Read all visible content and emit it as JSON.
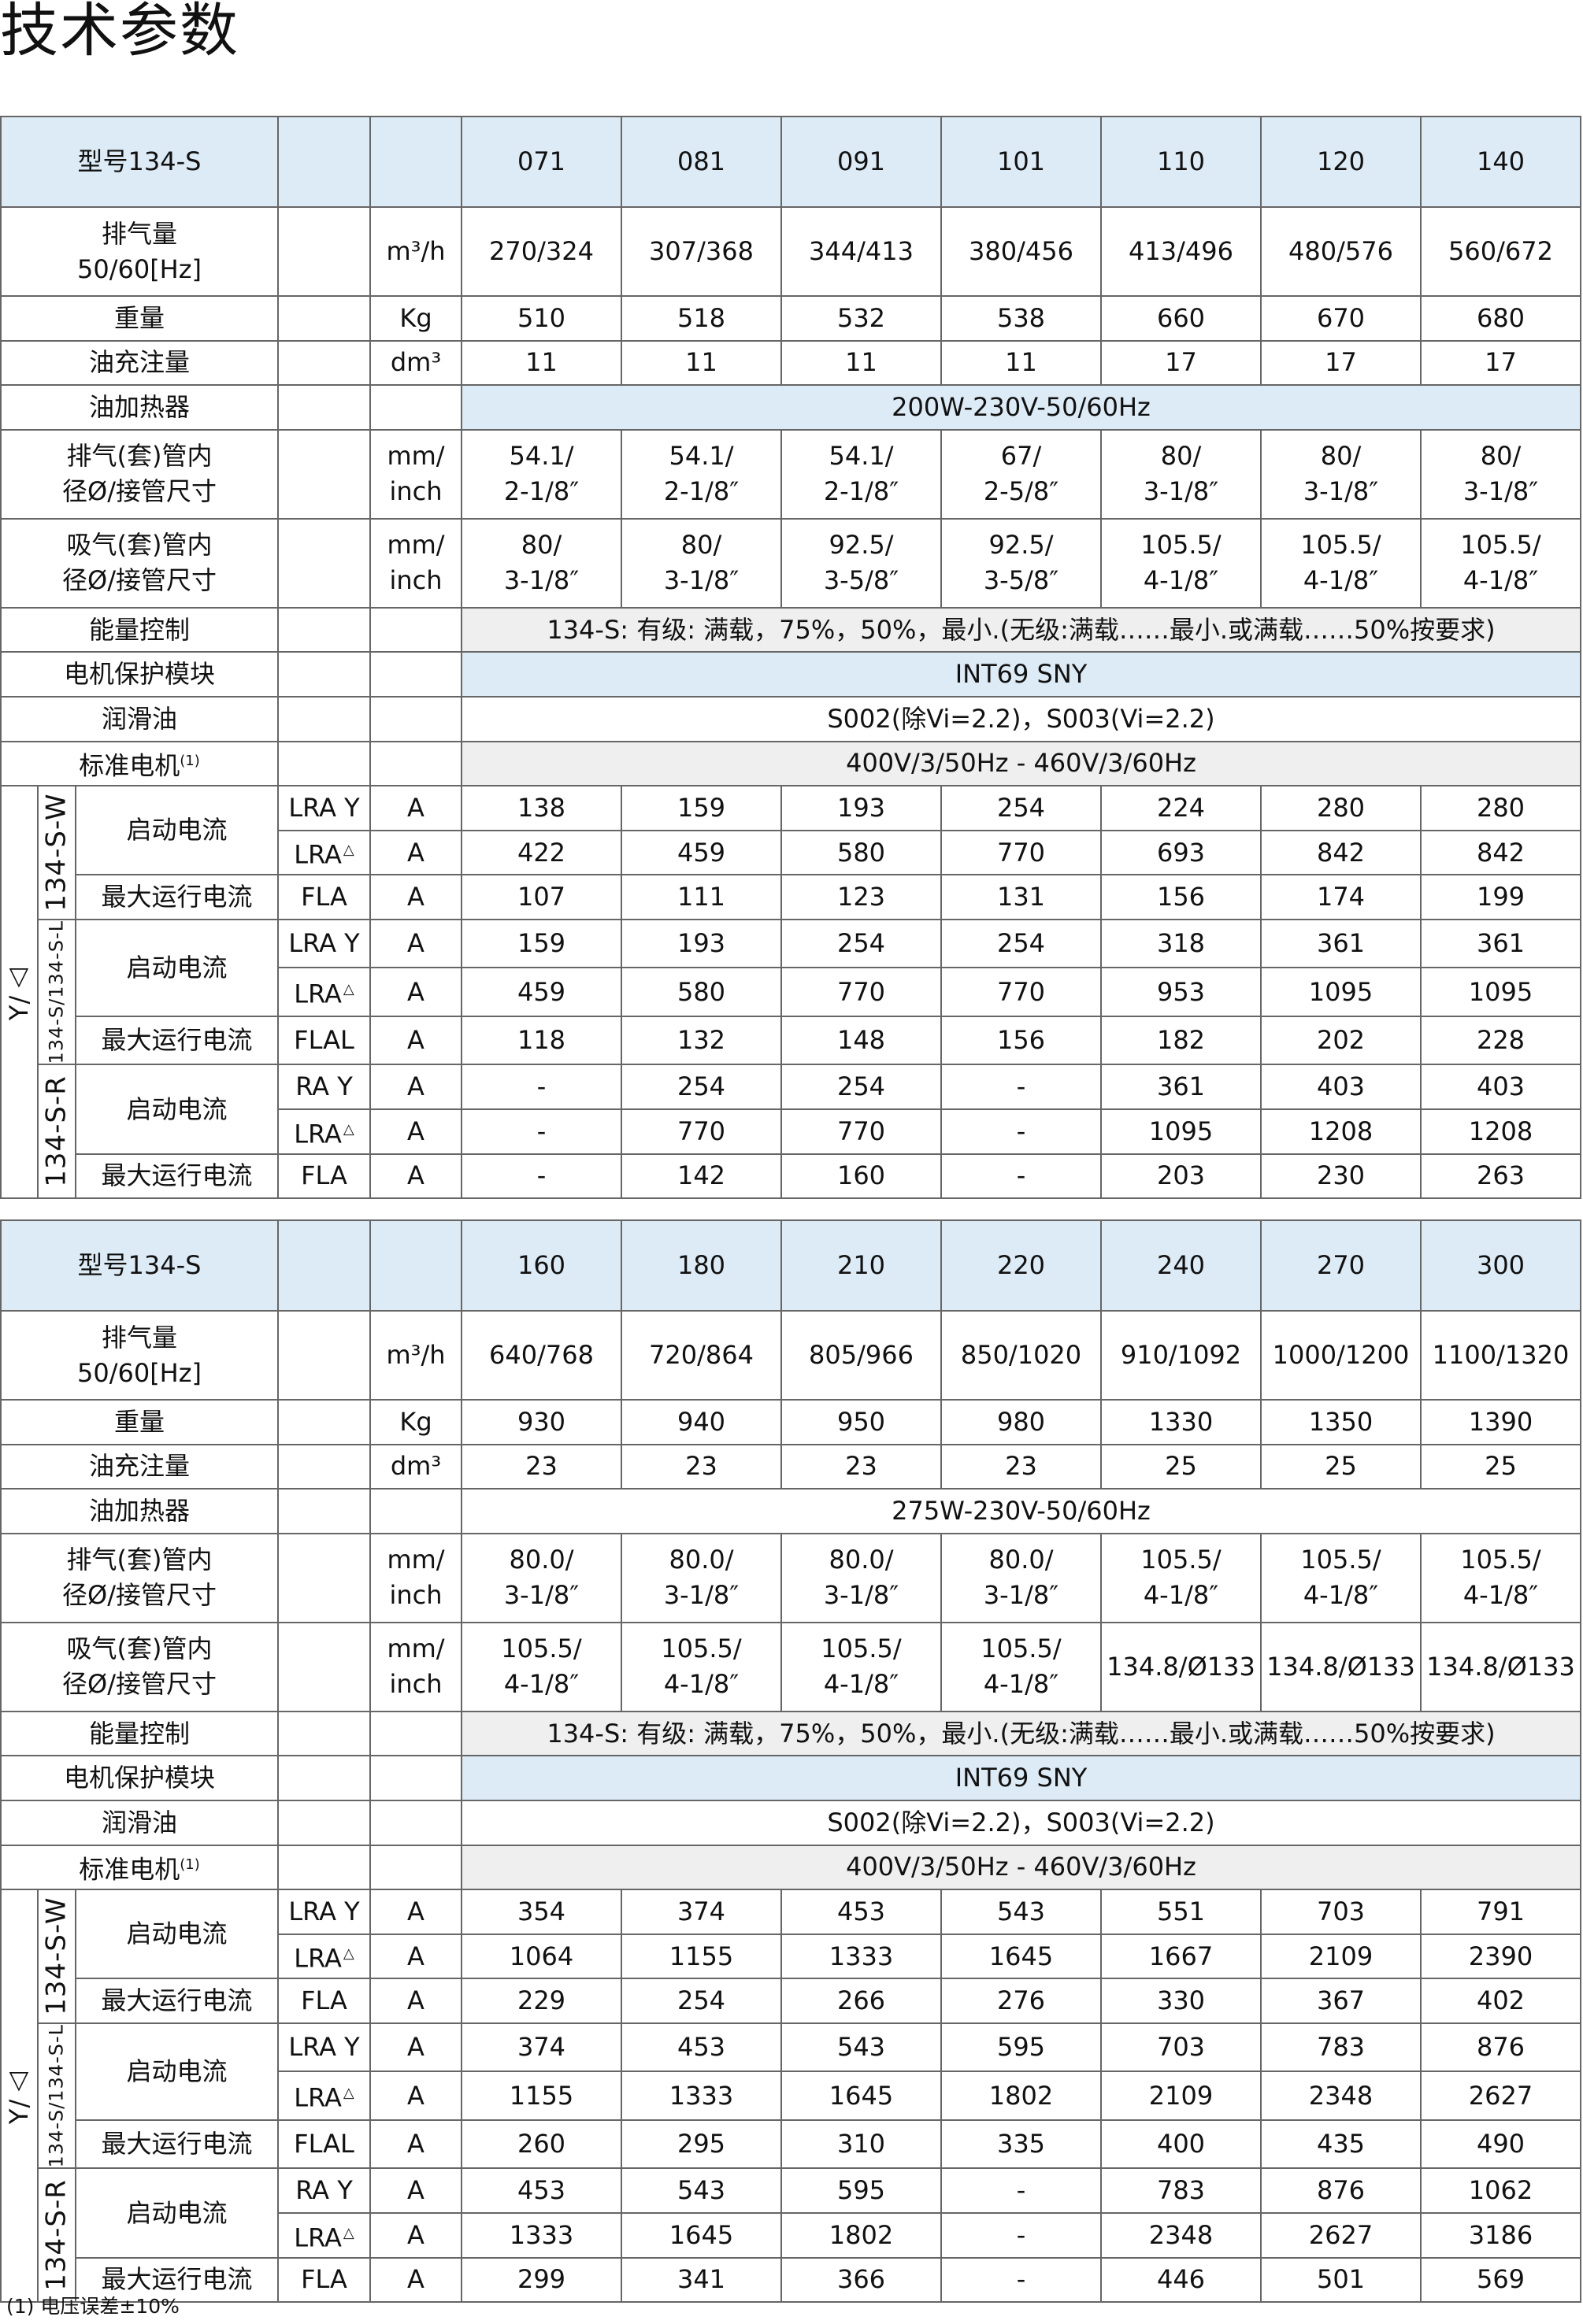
{
  "title": "技术参数",
  "footnote": "(1) 电压误差±10%",
  "tables": [
    {
      "model_label": "型号134-S",
      "models": [
        "071",
        "081",
        "091",
        "101",
        "110",
        "120",
        "140"
      ],
      "rows": [
        {
          "label": "排气量\n50/60[Hz]",
          "unit": "m³/h",
          "size": "dbl",
          "values": [
            "270/324",
            "307/368",
            "344/413",
            "380/456",
            "413/496",
            "480/576",
            "560/672"
          ]
        },
        {
          "label": "重量",
          "unit": "Kg",
          "size": "sgl",
          "values": [
            "510",
            "518",
            "532",
            "538",
            "660",
            "670",
            "680"
          ]
        },
        {
          "label": "油充注量",
          "unit": "dm³",
          "size": "sgl",
          "values": [
            "11",
            "11",
            "11",
            "11",
            "17",
            "17",
            "17"
          ]
        },
        {
          "label": "油加热器",
          "unit": "",
          "size": "sgl",
          "merged": "200W-230V-50/60Hz",
          "fill": "blue"
        },
        {
          "label": "排气(套)管内\n径Ø/接管尺寸",
          "unit": "mm/\ninch",
          "size": "dbl",
          "values": [
            "54.1/\n2-1/8″",
            "54.1/\n2-1/8″",
            "54.1/\n2-1/8″",
            "67/\n2-5/8″",
            "80/\n3-1/8″",
            "80/\n3-1/8″",
            "80/\n3-1/8″"
          ]
        },
        {
          "label": "吸气(套)管内\n径Ø/接管尺寸",
          "unit": "mm/\ninch",
          "size": "dbl",
          "values": [
            "80/\n3-1/8″",
            "80/\n3-1/8″",
            "92.5/\n3-5/8″",
            "92.5/\n3-5/8″",
            "105.5/\n4-1/8″",
            "105.5/\n4-1/8″",
            "105.5/\n4-1/8″"
          ]
        },
        {
          "label": "能量控制",
          "unit": "",
          "size": "sgl",
          "merged": "134-S: 有级: 满载，75%，50%，最小.(无级:满载……最小.或满载……50%按要求)",
          "fill": "gray"
        },
        {
          "label": "电机保护模块",
          "unit": "",
          "size": "sgl",
          "merged": "INT69 SNY",
          "fill": "blue"
        },
        {
          "label": "润滑油",
          "unit": "",
          "size": "sgl",
          "merged": "S002(除Vi=2.2)，S003(Vi=2.2)",
          "fill": "white"
        },
        {
          "label": "标准电机",
          "sup": "(1)",
          "unit": "",
          "size": "sgl",
          "merged": "400V/3/50Hz - 460V/3/60Hz",
          "fill": "gray"
        }
      ],
      "currents": {
        "group_label": "Y/△",
        "subgroups": [
          {
            "name": "134-S-W",
            "small": false,
            "start_label": "启动电流",
            "max_label": "最大运行电流",
            "rows": [
              {
                "code": "LRA Y",
                "mark": "",
                "unit": "A",
                "values": [
                  "138",
                  "159",
                  "193",
                  "254",
                  "224",
                  "280",
                  "280"
                ]
              },
              {
                "code": "LRA",
                "mark": "△",
                "unit": "A",
                "values": [
                  "422",
                  "459",
                  "580",
                  "770",
                  "693",
                  "842",
                  "842"
                ]
              },
              {
                "code": "FLA",
                "mark": "",
                "unit": "A",
                "values": [
                  "107",
                  "111",
                  "123",
                  "131",
                  "156",
                  "174",
                  "199"
                ]
              }
            ]
          },
          {
            "name": "134-S/134-S-L",
            "small": true,
            "start_label": "启动电流",
            "max_label": "最大运行电流",
            "rows": [
              {
                "code": "LRA Y",
                "mark": "",
                "unit": "A",
                "values": [
                  "159",
                  "193",
                  "254",
                  "254",
                  "318",
                  "361",
                  "361"
                ]
              },
              {
                "code": "LRA",
                "mark": "△",
                "unit": "A",
                "values": [
                  "459",
                  "580",
                  "770",
                  "770",
                  "953",
                  "1095",
                  "1095"
                ]
              },
              {
                "code": "FLAL",
                "mark": "",
                "unit": "A",
                "values": [
                  "118",
                  "132",
                  "148",
                  "156",
                  "182",
                  "202",
                  "228"
                ]
              }
            ]
          },
          {
            "name": "134-S-R",
            "small": false,
            "start_label": "启动电流",
            "max_label": "最大运行电流",
            "rows": [
              {
                "code": "RA Y",
                "mark": "",
                "unit": "A",
                "values": [
                  "-",
                  "254",
                  "254",
                  "-",
                  "361",
                  "403",
                  "403"
                ]
              },
              {
                "code": "LRA",
                "mark": "△",
                "unit": "A",
                "values": [
                  "-",
                  "770",
                  "770",
                  "-",
                  "1095",
                  "1208",
                  "1208"
                ]
              },
              {
                "code": "FLA",
                "mark": "",
                "unit": "A",
                "values": [
                  "-",
                  "142",
                  "160",
                  "-",
                  "203",
                  "230",
                  "263"
                ]
              }
            ]
          }
        ]
      }
    },
    {
      "model_label": "型号134-S",
      "models": [
        "160",
        "180",
        "210",
        "220",
        "240",
        "270",
        "300"
      ],
      "rows": [
        {
          "label": "排气量\n50/60[Hz]",
          "unit": "m³/h",
          "size": "dbl",
          "values": [
            "640/768",
            "720/864",
            "805/966",
            "850/1020",
            "910/1092",
            "1000/1200",
            "1100/1320"
          ]
        },
        {
          "label": "重量",
          "unit": "Kg",
          "size": "sgl",
          "values": [
            "930",
            "940",
            "950",
            "980",
            "1330",
            "1350",
            "1390"
          ]
        },
        {
          "label": "油充注量",
          "unit": "dm³",
          "size": "sgl",
          "values": [
            "23",
            "23",
            "23",
            "23",
            "25",
            "25",
            "25"
          ]
        },
        {
          "label": "油加热器",
          "unit": "",
          "size": "sgl",
          "merged": "275W-230V-50/60Hz",
          "fill": "white"
        },
        {
          "label": "排气(套)管内\n径Ø/接管尺寸",
          "unit": "mm/\ninch",
          "size": "dbl",
          "values": [
            "80.0/\n3-1/8″",
            "80.0/\n3-1/8″",
            "80.0/\n3-1/8″",
            "80.0/\n3-1/8″",
            "105.5/\n4-1/8″",
            "105.5/\n4-1/8″",
            "105.5/\n4-1/8″"
          ]
        },
        {
          "label": "吸气(套)管内\n径Ø/接管尺寸",
          "unit": "mm/\ninch",
          "size": "dbl",
          "values": [
            "105.5/\n4-1/8″",
            "105.5/\n4-1/8″",
            "105.5/\n4-1/8″",
            "105.5/\n4-1/8″",
            "134.8/Ø133",
            "134.8/Ø133",
            "134.8/Ø133"
          ]
        },
        {
          "label": "能量控制",
          "unit": "",
          "size": "sgl",
          "merged": "134-S: 有级: 满载，75%，50%，最小.(无级:满载……最小.或满载……50%按要求)",
          "fill": "gray"
        },
        {
          "label": "电机保护模块",
          "unit": "",
          "size": "sgl",
          "merged": "INT69 SNY",
          "fill": "blue"
        },
        {
          "label": "润滑油",
          "unit": "",
          "size": "sgl",
          "merged": "S002(除Vi=2.2)，S003(Vi=2.2)",
          "fill": "white"
        },
        {
          "label": "标准电机",
          "sup": "(1)",
          "unit": "",
          "size": "sgl",
          "merged": "400V/3/50Hz - 460V/3/60Hz",
          "fill": "gray"
        }
      ],
      "currents": {
        "group_label": "Y/△",
        "subgroups": [
          {
            "name": "134-S-W",
            "small": false,
            "start_label": "启动电流",
            "max_label": "最大运行电流",
            "rows": [
              {
                "code": "LRA Y",
                "mark": "",
                "unit": "A",
                "values": [
                  "354",
                  "374",
                  "453",
                  "543",
                  "551",
                  "703",
                  "791"
                ]
              },
              {
                "code": "LRA",
                "mark": "△",
                "unit": "A",
                "values": [
                  "1064",
                  "1155",
                  "1333",
                  "1645",
                  "1667",
                  "2109",
                  "2390"
                ]
              },
              {
                "code": "FLA",
                "mark": "",
                "unit": "A",
                "values": [
                  "229",
                  "254",
                  "266",
                  "276",
                  "330",
                  "367",
                  "402"
                ]
              }
            ]
          },
          {
            "name": "134-S/134-S-L",
            "small": true,
            "start_label": "启动电流",
            "max_label": "最大运行电流",
            "rows": [
              {
                "code": "LRA Y",
                "mark": "",
                "unit": "A",
                "values": [
                  "374",
                  "453",
                  "543",
                  "595",
                  "703",
                  "783",
                  "876"
                ]
              },
              {
                "code": "LRA",
                "mark": "△",
                "unit": "A",
                "values": [
                  "1155",
                  "1333",
                  "1645",
                  "1802",
                  "2109",
                  "2348",
                  "2627"
                ]
              },
              {
                "code": "FLAL",
                "mark": "",
                "unit": "A",
                "values": [
                  "260",
                  "295",
                  "310",
                  "335",
                  "400",
                  "435",
                  "490"
                ]
              }
            ]
          },
          {
            "name": "134-S-R",
            "small": false,
            "start_label": "启动电流",
            "max_label": "最大运行电流",
            "rows": [
              {
                "code": "RA Y",
                "mark": "",
                "unit": "A",
                "values": [
                  "453",
                  "543",
                  "595",
                  "-",
                  "783",
                  "876",
                  "1062"
                ]
              },
              {
                "code": "LRA",
                "mark": "△",
                "unit": "A",
                "values": [
                  "1333",
                  "1645",
                  "1802",
                  "-",
                  "2348",
                  "2627",
                  "3186"
                ]
              },
              {
                "code": "FLA",
                "mark": "",
                "unit": "A",
                "values": [
                  "299",
                  "341",
                  "366",
                  "-",
                  "446",
                  "501",
                  "569"
                ]
              }
            ]
          }
        ]
      }
    }
  ]
}
